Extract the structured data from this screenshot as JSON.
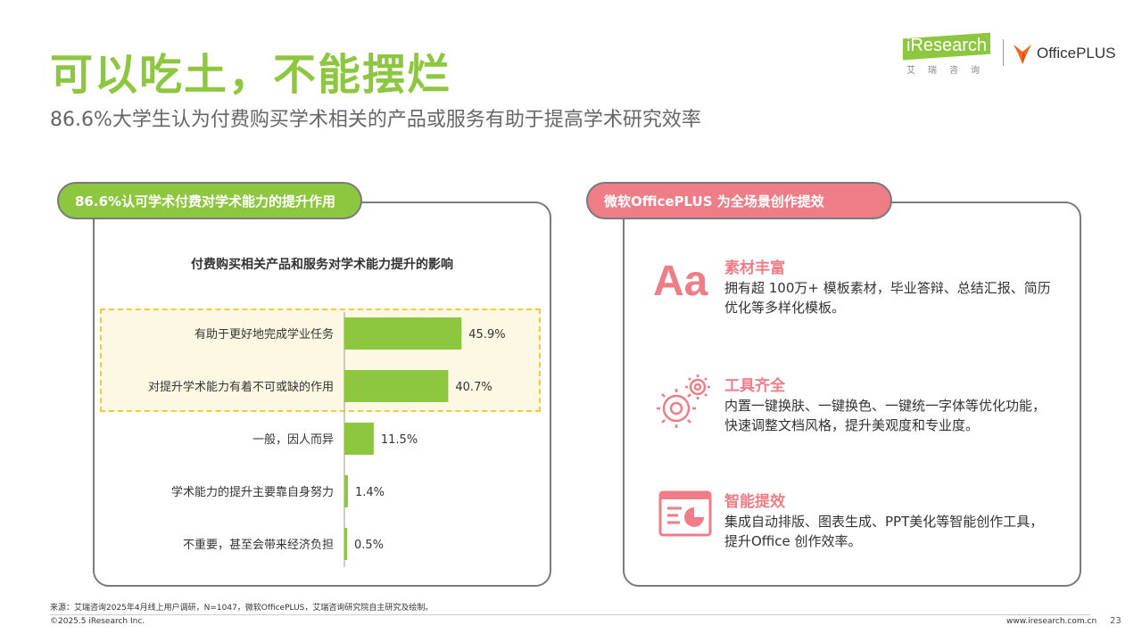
{
  "slide": {
    "title": "可以吃土，不能摆烂",
    "subtitle": "86.6%大学生认为付费购买学术相关的产品或服务有助于提高学术研究效率"
  },
  "logos": {
    "iresearch": "iResearch",
    "iresearch_cn": "艾瑞咨询",
    "officeplus": "OfficePLUS"
  },
  "left_panel": {
    "pill_label": "86.6%认可学术付费对学术能力的提升作用",
    "chart_title": "付费购买相关产品和服务对学术能力提升的影响"
  },
  "chart_data": {
    "type": "bar",
    "orientation": "horizontal",
    "title": "付费购买相关产品和服务对学术能力提升的影响",
    "categories": [
      "有助于更好地完成学业任务",
      "对提升学术能力有着不可或缺的作用",
      "一般，因人而异",
      "学术能力的提升主要靠自身努力",
      "不重要，甚至会带来经济负担"
    ],
    "values": [
      45.9,
      40.7,
      11.5,
      1.4,
      0.5
    ],
    "value_labels": [
      "45.9%",
      "40.7%",
      "11.5%",
      "1.4%",
      "0.5%"
    ],
    "unit": "%",
    "highlighted_categories": [
      0,
      1
    ],
    "bar_color": "#8dc63f",
    "grid": false
  },
  "right_panel": {
    "pill_label": "微软OfficePLUS 为全场景创作提效",
    "features": [
      {
        "icon": "aa-icon",
        "icon_text": "Aa",
        "title": "素材丰富",
        "description": "拥有超 100万+ 模板素材，毕业答辩、总结汇报、简历优化等多样化模板。"
      },
      {
        "icon": "gears-icon",
        "title": "工具齐全",
        "description": "内置一键换肤、一键换色、一键统一字体等优化功能，快速调整文档风格，提升美观度和专业度。"
      },
      {
        "icon": "presentation-chart-icon",
        "title": "智能提效",
        "description": "集成自动排版、图表生成、PPT美化等智能创作工具，提升Office 创作效率。"
      }
    ]
  },
  "footer": {
    "source": "来源：艾瑞咨询2025年4月线上用户调研，N=1047，微软OfficePLUS，艾瑞咨询研究院自主研究及绘制。",
    "copyright": "©2025.5 iResearch Inc.",
    "website": "www.iresearch.com.cn",
    "page_number": "23"
  },
  "colors": {
    "green": "#8dc63f",
    "pink": "#ef7d87",
    "highlight_border": "#f2cc3a"
  }
}
